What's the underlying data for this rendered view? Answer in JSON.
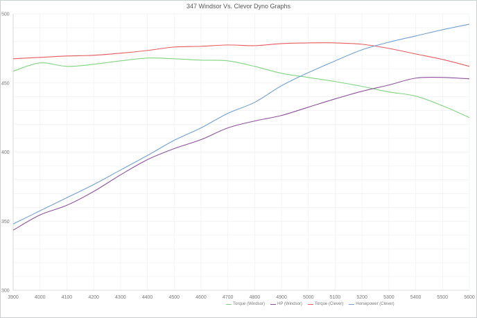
{
  "chart_data": {
    "type": "line",
    "title": "347 Windsor Vs. Clevor Dyno Graphs",
    "xlabel": "",
    "ylabel": "",
    "x": [
      3900,
      4000,
      4100,
      4200,
      4300,
      4400,
      4500,
      4600,
      4700,
      4800,
      4900,
      5000,
      5100,
      5200,
      5300,
      5400,
      5500,
      5600
    ],
    "x_tick_labels": [
      "3900",
      "4000",
      "4100",
      "4200",
      "4300",
      "4400",
      "4500",
      "4600",
      "4700",
      "4800",
      "4900",
      "5000",
      "5100",
      "5200",
      "5300",
      "5400",
      "5500",
      "5600"
    ],
    "ylim": [
      300,
      500
    ],
    "y_ticks": [
      300,
      350,
      400,
      450,
      500
    ],
    "y_tick_labels": [
      "300",
      "350",
      "400",
      "450",
      "500"
    ],
    "grid": true,
    "legend_position": "bottom-right",
    "series": [
      {
        "name": "Torque (Windsor)",
        "color": "#7fd67f",
        "values": [
          458.5,
          464.5,
          462,
          463.5,
          466,
          468,
          467.5,
          466.5,
          466,
          462,
          457,
          454,
          451,
          447.5,
          443.5,
          440.5,
          433.5,
          425
        ]
      },
      {
        "name": "HP (Windsor)",
        "color": "#8e4f9e",
        "values": [
          343.5,
          354.5,
          361.5,
          371.5,
          383.5,
          394.5,
          402.5,
          409,
          417.5,
          422.5,
          426.5,
          432.5,
          438.5,
          444,
          448.5,
          453.5,
          454,
          453
        ]
      },
      {
        "name": "Torque (Clever)",
        "color": "#e85a5c",
        "values": [
          467.5,
          468.5,
          469.5,
          470,
          471.5,
          473.5,
          476,
          476.5,
          477.5,
          477,
          478.5,
          479,
          479,
          478,
          475,
          471,
          467,
          462
        ]
      },
      {
        "name": "Horsepower (Clever)",
        "color": "#6f9fd6",
        "values": [
          348,
          357.5,
          367,
          376.5,
          387,
          397.5,
          408.5,
          417.5,
          428,
          436,
          448,
          457.5,
          466,
          474,
          479.5,
          484,
          488.5,
          492.5
        ]
      }
    ]
  }
}
